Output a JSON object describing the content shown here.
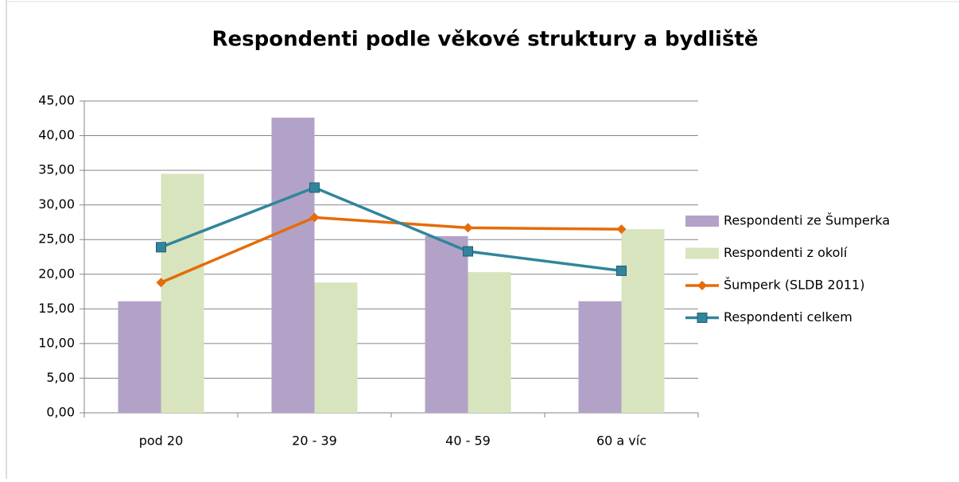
{
  "chart_data": {
    "type": "bar",
    "title": "Respondenti podle věkové struktury a bydliště",
    "categories": [
      "pod 20",
      "20 - 39",
      "40 - 59",
      "60 a víc"
    ],
    "series": [
      {
        "name": "Respondenti ze Šumperka",
        "type": "bar",
        "color": "#b3a2c7",
        "values": [
          16.1,
          42.6,
          25.5,
          16.1
        ]
      },
      {
        "name": "Respondenti z okolí",
        "type": "bar",
        "color": "#d7e4bd",
        "values": [
          34.5,
          18.8,
          20.3,
          26.5
        ]
      },
      {
        "name": "Šumperk (SLDB 2011)",
        "type": "line",
        "marker": "diamond",
        "color": "#e46c0a",
        "values": [
          18.8,
          28.2,
          26.7,
          26.5
        ]
      },
      {
        "name": "Respondenti celkem",
        "type": "line",
        "marker": "square",
        "color": "#31859c",
        "values": [
          23.9,
          32.5,
          23.3,
          20.5
        ]
      }
    ],
    "ylim": [
      0,
      45
    ],
    "yticks": [
      {
        "value": 0,
        "label": "0,00"
      },
      {
        "value": 5,
        "label": "5,00"
      },
      {
        "value": 10,
        "label": "10,00"
      },
      {
        "value": 15,
        "label": "15,00"
      },
      {
        "value": 20,
        "label": "20,00"
      },
      {
        "value": 25,
        "label": "25,00"
      },
      {
        "value": 30,
        "label": "30,00"
      },
      {
        "value": 35,
        "label": "35,00"
      },
      {
        "value": 40,
        "label": "40,00"
      },
      {
        "value": 45,
        "label": "45,00"
      }
    ],
    "grid": true,
    "legend": "right"
  }
}
